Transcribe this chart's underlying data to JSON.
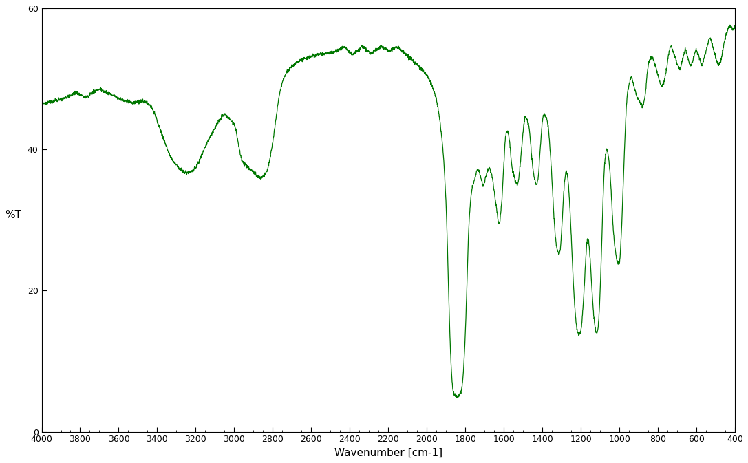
{
  "title": "",
  "xlabel": "Wavenumber [cm-1]",
  "ylabel": "%T",
  "xlim": [
    4000,
    400
  ],
  "ylim": [
    0,
    60
  ],
  "yticks": [
    0,
    20,
    40,
    60
  ],
  "xticks": [
    4000,
    3800,
    3600,
    3400,
    3200,
    3000,
    2800,
    2600,
    2400,
    2200,
    2000,
    1800,
    1600,
    1400,
    1200,
    1000,
    800,
    600,
    400
  ],
  "line_color": "#007700",
  "background_color": "#ffffff",
  "figsize": [
    10.87,
    6.73
  ],
  "dpi": 100,
  "keypoints": [
    [
      4000,
      46.5
    ],
    [
      3980,
      46.6
    ],
    [
      3960,
      46.7
    ],
    [
      3940,
      46.8
    ],
    [
      3920,
      47.0
    ],
    [
      3900,
      47.1
    ],
    [
      3880,
      47.3
    ],
    [
      3860,
      47.5
    ],
    [
      3840,
      47.8
    ],
    [
      3820,
      48.0
    ],
    [
      3800,
      47.8
    ],
    [
      3780,
      47.5
    ],
    [
      3760,
      47.5
    ],
    [
      3740,
      48.0
    ],
    [
      3720,
      48.3
    ],
    [
      3700,
      48.5
    ],
    [
      3680,
      48.3
    ],
    [
      3660,
      48.0
    ],
    [
      3640,
      47.8
    ],
    [
      3620,
      47.5
    ],
    [
      3600,
      47.2
    ],
    [
      3580,
      47.0
    ],
    [
      3560,
      46.8
    ],
    [
      3540,
      46.7
    ],
    [
      3520,
      46.6
    ],
    [
      3500,
      46.7
    ],
    [
      3480,
      46.8
    ],
    [
      3460,
      46.7
    ],
    [
      3450,
      46.5
    ],
    [
      3440,
      46.3
    ],
    [
      3420,
      45.5
    ],
    [
      3400,
      44.0
    ],
    [
      3380,
      42.5
    ],
    [
      3360,
      41.0
    ],
    [
      3340,
      39.5
    ],
    [
      3320,
      38.5
    ],
    [
      3300,
      37.8
    ],
    [
      3280,
      37.2
    ],
    [
      3260,
      36.8
    ],
    [
      3240,
      36.7
    ],
    [
      3220,
      36.9
    ],
    [
      3200,
      37.5
    ],
    [
      3180,
      38.5
    ],
    [
      3160,
      39.8
    ],
    [
      3140,
      41.0
    ],
    [
      3120,
      42.0
    ],
    [
      3100,
      43.0
    ],
    [
      3080,
      44.0
    ],
    [
      3060,
      44.8
    ],
    [
      3050,
      45.0
    ],
    [
      3040,
      44.8
    ],
    [
      3030,
      44.5
    ],
    [
      3020,
      44.2
    ],
    [
      3010,
      43.8
    ],
    [
      3000,
      43.5
    ],
    [
      2990,
      42.5
    ],
    [
      2980,
      41.0
    ],
    [
      2970,
      39.5
    ],
    [
      2960,
      38.5
    ],
    [
      2950,
      38.0
    ],
    [
      2940,
      37.8
    ],
    [
      2930,
      37.5
    ],
    [
      2920,
      37.2
    ],
    [
      2910,
      37.0
    ],
    [
      2900,
      36.8
    ],
    [
      2890,
      36.5
    ],
    [
      2880,
      36.2
    ],
    [
      2870,
      36.0
    ],
    [
      2860,
      36.0
    ],
    [
      2850,
      36.2
    ],
    [
      2840,
      36.5
    ],
    [
      2830,
      37.0
    ],
    [
      2820,
      38.0
    ],
    [
      2810,
      39.5
    ],
    [
      2800,
      41.0
    ],
    [
      2790,
      43.0
    ],
    [
      2780,
      45.0
    ],
    [
      2770,
      47.0
    ],
    [
      2760,
      48.5
    ],
    [
      2750,
      49.5
    ],
    [
      2740,
      50.2
    ],
    [
      2730,
      50.8
    ],
    [
      2720,
      51.2
    ],
    [
      2710,
      51.5
    ],
    [
      2700,
      51.8
    ],
    [
      2690,
      52.0
    ],
    [
      2680,
      52.2
    ],
    [
      2660,
      52.5
    ],
    [
      2640,
      52.8
    ],
    [
      2620,
      53.0
    ],
    [
      2600,
      53.2
    ],
    [
      2580,
      53.3
    ],
    [
      2560,
      53.5
    ],
    [
      2540,
      53.5
    ],
    [
      2520,
      53.6
    ],
    [
      2500,
      53.7
    ],
    [
      2480,
      53.8
    ],
    [
      2460,
      54.0
    ],
    [
      2450,
      54.2
    ],
    [
      2440,
      54.5
    ],
    [
      2430,
      54.5
    ],
    [
      2420,
      54.3
    ],
    [
      2410,
      54.0
    ],
    [
      2400,
      53.8
    ],
    [
      2390,
      53.5
    ],
    [
      2380,
      53.5
    ],
    [
      2370,
      53.8
    ],
    [
      2360,
      54.0
    ],
    [
      2350,
      54.2
    ],
    [
      2340,
      54.5
    ],
    [
      2330,
      54.5
    ],
    [
      2320,
      54.3
    ],
    [
      2310,
      54.0
    ],
    [
      2300,
      53.8
    ],
    [
      2290,
      53.5
    ],
    [
      2280,
      53.8
    ],
    [
      2270,
      54.0
    ],
    [
      2260,
      54.2
    ],
    [
      2250,
      54.3
    ],
    [
      2240,
      54.5
    ],
    [
      2230,
      54.5
    ],
    [
      2220,
      54.3
    ],
    [
      2210,
      54.2
    ],
    [
      2200,
      54.0
    ],
    [
      2190,
      54.0
    ],
    [
      2180,
      54.2
    ],
    [
      2170,
      54.3
    ],
    [
      2160,
      54.5
    ],
    [
      2150,
      54.5
    ],
    [
      2140,
      54.3
    ],
    [
      2130,
      54.0
    ],
    [
      2120,
      53.8
    ],
    [
      2110,
      53.5
    ],
    [
      2100,
      53.3
    ],
    [
      2090,
      53.0
    ],
    [
      2080,
      52.8
    ],
    [
      2070,
      52.5
    ],
    [
      2060,
      52.2
    ],
    [
      2050,
      52.0
    ],
    [
      2040,
      51.8
    ],
    [
      2030,
      51.5
    ],
    [
      2020,
      51.2
    ],
    [
      2010,
      50.8
    ],
    [
      2000,
      50.5
    ],
    [
      1990,
      50.0
    ],
    [
      1980,
      49.5
    ],
    [
      1970,
      48.8
    ],
    [
      1960,
      48.0
    ],
    [
      1950,
      47.0
    ],
    [
      1940,
      45.5
    ],
    [
      1930,
      43.5
    ],
    [
      1920,
      41.0
    ],
    [
      1910,
      37.5
    ],
    [
      1905,
      35.0
    ],
    [
      1900,
      32.0
    ],
    [
      1895,
      28.0
    ],
    [
      1890,
      23.0
    ],
    [
      1885,
      18.0
    ],
    [
      1880,
      13.5
    ],
    [
      1875,
      10.0
    ],
    [
      1870,
      7.5
    ],
    [
      1865,
      6.0
    ],
    [
      1860,
      5.5
    ],
    [
      1855,
      5.2
    ],
    [
      1850,
      5.0
    ],
    [
      1845,
      5.0
    ],
    [
      1840,
      5.0
    ],
    [
      1835,
      5.0
    ],
    [
      1830,
      5.2
    ],
    [
      1825,
      5.5
    ],
    [
      1820,
      6.0
    ],
    [
      1815,
      7.0
    ],
    [
      1810,
      8.5
    ],
    [
      1805,
      11.0
    ],
    [
      1800,
      14.0
    ],
    [
      1795,
      18.0
    ],
    [
      1790,
      22.5
    ],
    [
      1785,
      27.0
    ],
    [
      1780,
      30.0
    ],
    [
      1775,
      32.0
    ],
    [
      1770,
      33.5
    ],
    [
      1765,
      34.5
    ],
    [
      1760,
      35.0
    ],
    [
      1755,
      35.5
    ],
    [
      1750,
      36.0
    ],
    [
      1745,
      36.5
    ],
    [
      1740,
      37.0
    ],
    [
      1735,
      37.0
    ],
    [
      1730,
      37.0
    ],
    [
      1725,
      36.5
    ],
    [
      1720,
      36.0
    ],
    [
      1715,
      35.5
    ],
    [
      1710,
      35.0
    ],
    [
      1705,
      35.0
    ],
    [
      1700,
      35.5
    ],
    [
      1695,
      36.0
    ],
    [
      1690,
      36.5
    ],
    [
      1685,
      37.0
    ],
    [
      1680,
      37.2
    ],
    [
      1675,
      37.3
    ],
    [
      1670,
      37.0
    ],
    [
      1665,
      36.5
    ],
    [
      1660,
      36.0
    ],
    [
      1655,
      35.0
    ],
    [
      1650,
      34.0
    ],
    [
      1645,
      33.0
    ],
    [
      1640,
      32.0
    ],
    [
      1635,
      31.0
    ],
    [
      1630,
      30.0
    ],
    [
      1625,
      29.5
    ],
    [
      1620,
      30.0
    ],
    [
      1615,
      31.5
    ],
    [
      1610,
      33.0
    ],
    [
      1605,
      35.5
    ],
    [
      1600,
      38.0
    ],
    [
      1595,
      40.5
    ],
    [
      1590,
      42.0
    ],
    [
      1585,
      42.5
    ],
    [
      1580,
      42.5
    ],
    [
      1575,
      42.0
    ],
    [
      1570,
      41.0
    ],
    [
      1565,
      39.5
    ],
    [
      1560,
      38.0
    ],
    [
      1555,
      37.0
    ],
    [
      1550,
      36.5
    ],
    [
      1545,
      36.0
    ],
    [
      1540,
      35.5
    ],
    [
      1535,
      35.2
    ],
    [
      1530,
      35.0
    ],
    [
      1525,
      35.5
    ],
    [
      1520,
      36.5
    ],
    [
      1515,
      38.0
    ],
    [
      1510,
      39.5
    ],
    [
      1505,
      41.0
    ],
    [
      1500,
      42.5
    ],
    [
      1495,
      43.8
    ],
    [
      1490,
      44.5
    ],
    [
      1485,
      44.5
    ],
    [
      1480,
      44.2
    ],
    [
      1475,
      43.8
    ],
    [
      1470,
      43.2
    ],
    [
      1465,
      42.0
    ],
    [
      1460,
      40.5
    ],
    [
      1455,
      38.8
    ],
    [
      1450,
      37.5
    ],
    [
      1445,
      36.5
    ],
    [
      1440,
      35.8
    ],
    [
      1435,
      35.2
    ],
    [
      1430,
      35.0
    ],
    [
      1425,
      35.5
    ],
    [
      1420,
      36.5
    ],
    [
      1415,
      38.5
    ],
    [
      1410,
      40.5
    ],
    [
      1405,
      42.5
    ],
    [
      1400,
      44.0
    ],
    [
      1395,
      44.8
    ],
    [
      1390,
      45.0
    ],
    [
      1385,
      44.8
    ],
    [
      1380,
      44.5
    ],
    [
      1375,
      44.0
    ],
    [
      1370,
      43.2
    ],
    [
      1365,
      41.8
    ],
    [
      1360,
      40.0
    ],
    [
      1355,
      38.0
    ],
    [
      1350,
      35.5
    ],
    [
      1345,
      33.0
    ],
    [
      1340,
      30.5
    ],
    [
      1335,
      28.5
    ],
    [
      1330,
      27.0
    ],
    [
      1325,
      26.0
    ],
    [
      1320,
      25.5
    ],
    [
      1315,
      25.2
    ],
    [
      1310,
      25.5
    ],
    [
      1305,
      26.5
    ],
    [
      1300,
      28.5
    ],
    [
      1295,
      31.0
    ],
    [
      1290,
      33.5
    ],
    [
      1285,
      35.5
    ],
    [
      1280,
      36.5
    ],
    [
      1275,
      36.8
    ],
    [
      1270,
      36.2
    ],
    [
      1265,
      35.0
    ],
    [
      1260,
      33.0
    ],
    [
      1255,
      30.5
    ],
    [
      1250,
      27.5
    ],
    [
      1245,
      24.5
    ],
    [
      1240,
      21.5
    ],
    [
      1235,
      19.0
    ],
    [
      1230,
      17.0
    ],
    [
      1225,
      15.5
    ],
    [
      1220,
      14.5
    ],
    [
      1215,
      14.0
    ],
    [
      1210,
      13.8
    ],
    [
      1205,
      14.0
    ],
    [
      1200,
      14.5
    ],
    [
      1195,
      15.5
    ],
    [
      1190,
      17.5
    ],
    [
      1185,
      19.5
    ],
    [
      1180,
      22.0
    ],
    [
      1175,
      24.5
    ],
    [
      1170,
      26.5
    ],
    [
      1165,
      27.5
    ],
    [
      1160,
      27.0
    ],
    [
      1155,
      25.5
    ],
    [
      1150,
      23.5
    ],
    [
      1145,
      21.0
    ],
    [
      1140,
      19.0
    ],
    [
      1135,
      17.0
    ],
    [
      1130,
      15.5
    ],
    [
      1125,
      14.5
    ],
    [
      1120,
      14.0
    ],
    [
      1115,
      14.2
    ],
    [
      1110,
      15.0
    ],
    [
      1105,
      17.0
    ],
    [
      1100,
      20.0
    ],
    [
      1095,
      24.0
    ],
    [
      1090,
      28.5
    ],
    [
      1085,
      33.0
    ],
    [
      1080,
      36.5
    ],
    [
      1075,
      38.5
    ],
    [
      1070,
      39.5
    ],
    [
      1065,
      40.0
    ],
    [
      1060,
      39.5
    ],
    [
      1055,
      38.5
    ],
    [
      1050,
      37.0
    ],
    [
      1045,
      35.0
    ],
    [
      1040,
      32.5
    ],
    [
      1035,
      30.0
    ],
    [
      1030,
      28.0
    ],
    [
      1025,
      26.5
    ],
    [
      1020,
      25.5
    ],
    [
      1015,
      24.5
    ],
    [
      1010,
      24.0
    ],
    [
      1005,
      23.8
    ],
    [
      1000,
      24.0
    ],
    [
      995,
      25.5
    ],
    [
      990,
      28.0
    ],
    [
      985,
      31.5
    ],
    [
      980,
      35.5
    ],
    [
      975,
      39.0
    ],
    [
      970,
      42.5
    ],
    [
      965,
      45.5
    ],
    [
      960,
      47.5
    ],
    [
      955,
      48.5
    ],
    [
      950,
      49.2
    ],
    [
      945,
      49.8
    ],
    [
      940,
      50.2
    ],
    [
      935,
      50.0
    ],
    [
      930,
      49.5
    ],
    [
      925,
      49.0
    ],
    [
      920,
      48.5
    ],
    [
      915,
      48.0
    ],
    [
      910,
      47.5
    ],
    [
      905,
      47.2
    ],
    [
      900,
      47.0
    ],
    [
      895,
      46.8
    ],
    [
      890,
      46.5
    ],
    [
      885,
      46.3
    ],
    [
      880,
      46.2
    ],
    [
      875,
      46.5
    ],
    [
      870,
      47.0
    ],
    [
      865,
      48.0
    ],
    [
      860,
      49.5
    ],
    [
      855,
      51.0
    ],
    [
      850,
      52.0
    ],
    [
      845,
      52.5
    ],
    [
      840,
      52.8
    ],
    [
      835,
      53.0
    ],
    [
      830,
      53.0
    ],
    [
      825,
      52.8
    ],
    [
      820,
      52.5
    ],
    [
      815,
      52.0
    ],
    [
      810,
      51.5
    ],
    [
      805,
      51.0
    ],
    [
      800,
      50.5
    ],
    [
      795,
      50.0
    ],
    [
      790,
      49.5
    ],
    [
      785,
      49.2
    ],
    [
      780,
      49.0
    ],
    [
      775,
      49.2
    ],
    [
      770,
      49.5
    ],
    [
      765,
      50.0
    ],
    [
      760,
      50.8
    ],
    [
      755,
      51.5
    ],
    [
      750,
      52.5
    ],
    [
      745,
      53.5
    ],
    [
      740,
      54.0
    ],
    [
      735,
      54.5
    ],
    [
      730,
      54.5
    ],
    [
      725,
      54.2
    ],
    [
      720,
      53.8
    ],
    [
      715,
      53.3
    ],
    [
      710,
      53.0
    ],
    [
      705,
      52.5
    ],
    [
      700,
      52.0
    ],
    [
      695,
      51.8
    ],
    [
      690,
      51.5
    ],
    [
      685,
      51.5
    ],
    [
      680,
      52.0
    ],
    [
      675,
      52.5
    ],
    [
      670,
      53.0
    ],
    [
      665,
      53.5
    ],
    [
      660,
      54.0
    ],
    [
      655,
      54.0
    ],
    [
      650,
      53.5
    ],
    [
      645,
      53.0
    ],
    [
      640,
      52.5
    ],
    [
      635,
      52.0
    ],
    [
      630,
      52.0
    ],
    [
      625,
      52.2
    ],
    [
      620,
      52.5
    ],
    [
      615,
      53.0
    ],
    [
      610,
      53.5
    ],
    [
      605,
      54.0
    ],
    [
      600,
      54.0
    ],
    [
      595,
      53.8
    ],
    [
      590,
      53.5
    ],
    [
      585,
      53.0
    ],
    [
      580,
      52.5
    ],
    [
      575,
      52.0
    ],
    [
      570,
      52.0
    ],
    [
      565,
      52.5
    ],
    [
      560,
      53.0
    ],
    [
      555,
      53.5
    ],
    [
      550,
      54.0
    ],
    [
      545,
      54.5
    ],
    [
      540,
      55.0
    ],
    [
      535,
      55.5
    ],
    [
      530,
      55.8
    ],
    [
      525,
      55.5
    ],
    [
      520,
      55.0
    ],
    [
      515,
      54.5
    ],
    [
      510,
      54.0
    ],
    [
      505,
      53.5
    ],
    [
      500,
      53.0
    ],
    [
      495,
      52.5
    ],
    [
      490,
      52.2
    ],
    [
      485,
      52.0
    ],
    [
      480,
      52.2
    ],
    [
      475,
      52.5
    ],
    [
      470,
      53.0
    ],
    [
      465,
      53.8
    ],
    [
      460,
      54.5
    ],
    [
      455,
      55.2
    ],
    [
      450,
      55.8
    ],
    [
      445,
      56.3
    ],
    [
      440,
      56.8
    ],
    [
      435,
      57.2
    ],
    [
      430,
      57.5
    ],
    [
      425,
      57.5
    ],
    [
      420,
      57.3
    ],
    [
      415,
      57.0
    ],
    [
      410,
      57.0
    ],
    [
      405,
      57.2
    ],
    [
      400,
      57.5
    ]
  ]
}
